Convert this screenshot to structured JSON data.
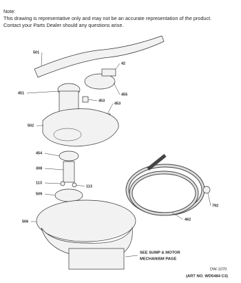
{
  "note": {
    "heading": "Note:",
    "lines": [
      "This drawing is representative only and may not be an accurate representation of the product.",
      "Contact your Parts Dealer should any questions arise."
    ]
  },
  "parts": [
    {
      "label": "501"
    },
    {
      "label": "42"
    },
    {
      "label": "451"
    },
    {
      "label": "455"
    },
    {
      "label": "453"
    },
    {
      "label": "453"
    },
    {
      "label": "502"
    },
    {
      "label": "454"
    },
    {
      "label": "308"
    },
    {
      "label": "113"
    },
    {
      "label": "509"
    },
    {
      "label": "113"
    },
    {
      "label": "506"
    },
    {
      "label": "462"
    },
    {
      "label": "792"
    }
  ],
  "callout": {
    "lines": [
      "SEE SUMP & MOTOR",
      "MECHANISM PAGE"
    ]
  },
  "footer": {
    "drawing_id": "DW-1070",
    "art_no": "(ART NO. WD5484 C3)"
  }
}
